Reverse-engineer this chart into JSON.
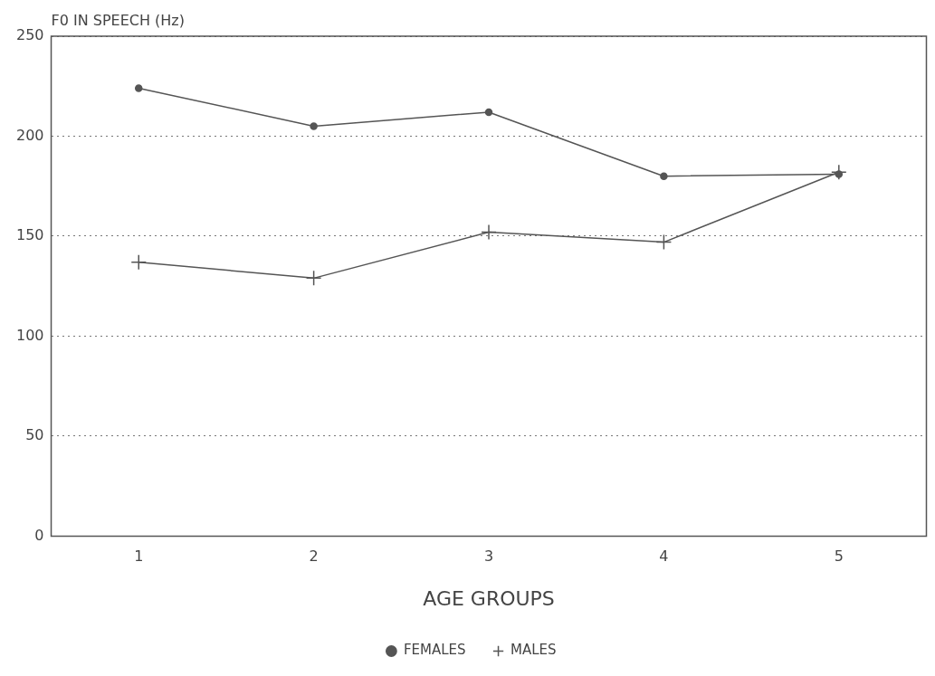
{
  "chart_data": {
    "type": "line",
    "ylabel": "F0 IN SPEECH (Hz)",
    "xlabel": "AGE GROUPS",
    "categories": [
      "1",
      "2",
      "3",
      "4",
      "5"
    ],
    "series": [
      {
        "name": "FEMALES",
        "color": "#555555",
        "marker": "circle",
        "values": [
          224,
          205,
          212,
          180,
          181
        ]
      },
      {
        "name": "MALES",
        "color": "#555555",
        "marker": "cross",
        "values": [
          137,
          129,
          152,
          147,
          182
        ]
      }
    ],
    "ylim": [
      0,
      250
    ],
    "yticks": [
      0,
      50,
      100,
      150,
      200,
      250
    ],
    "grid": "y",
    "legend": "bottom",
    "line_style": "solid"
  }
}
